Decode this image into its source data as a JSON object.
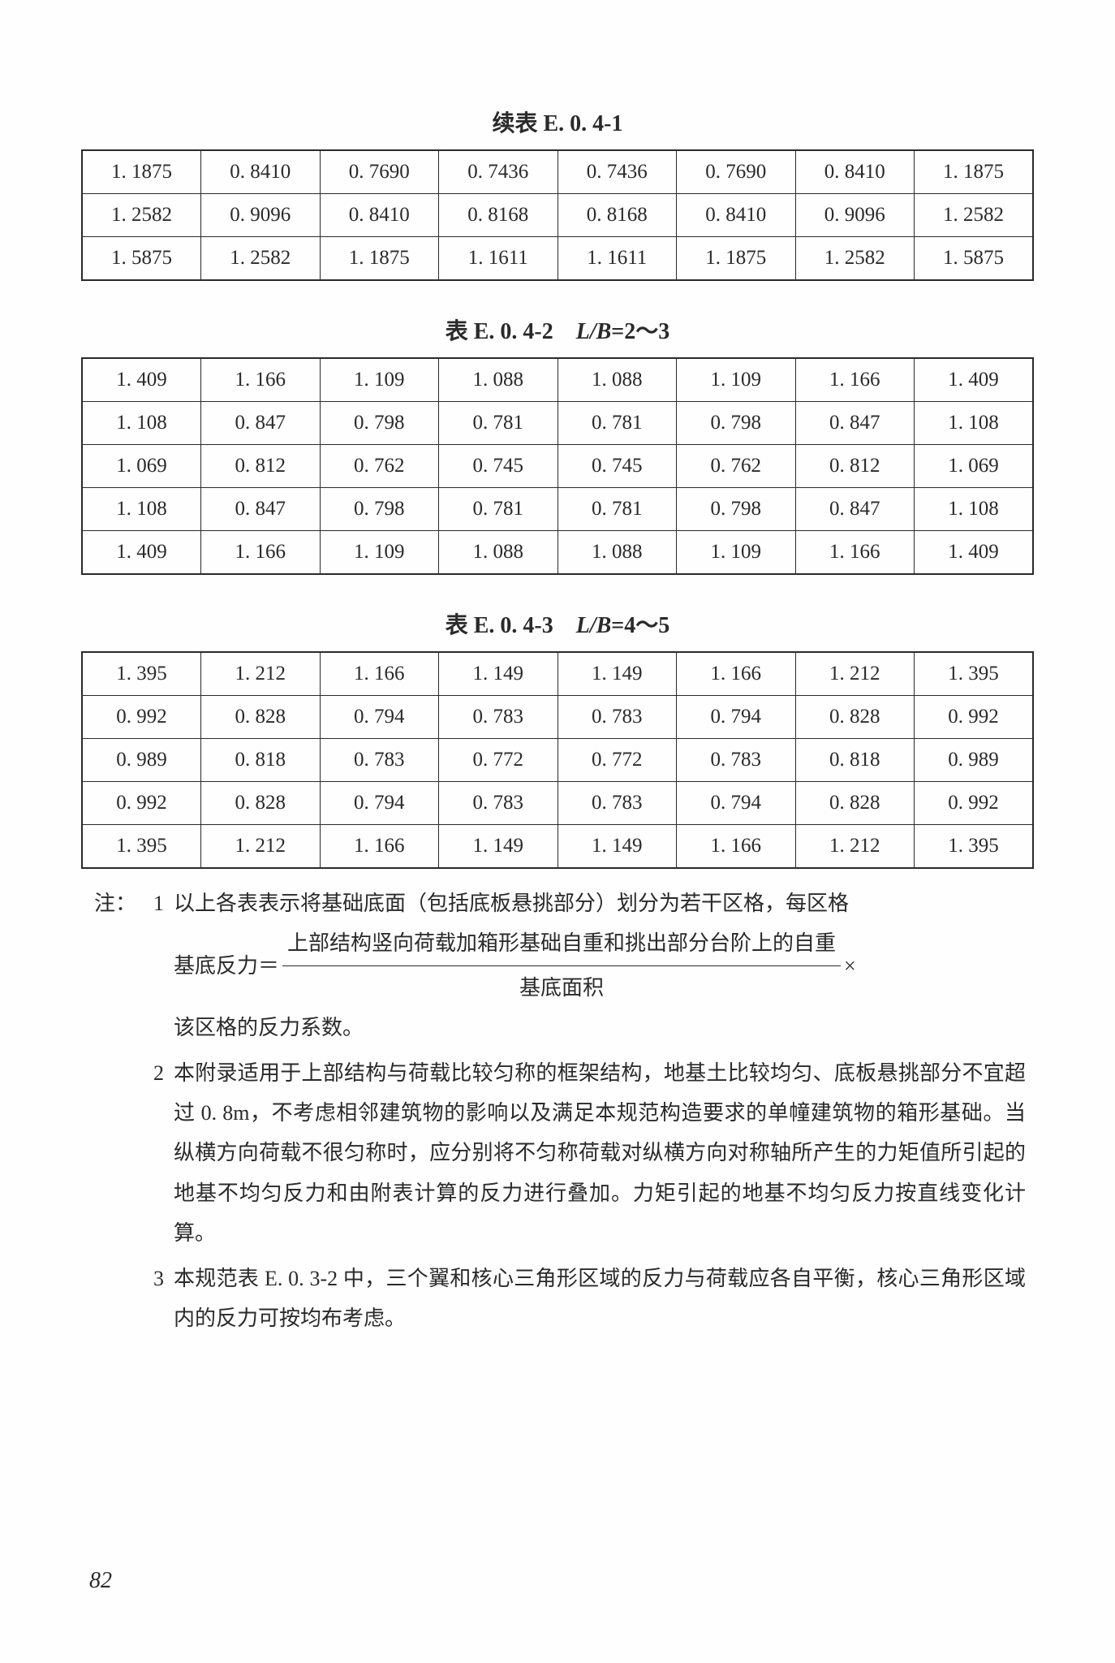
{
  "table1": {
    "title": "续表 E. 0. 4-1",
    "rows": [
      [
        "1. 1875",
        "0. 8410",
        "0. 7690",
        "0. 7436",
        "0. 7436",
        "0. 7690",
        "0. 8410",
        "1. 1875"
      ],
      [
        "1. 2582",
        "0. 9096",
        "0. 8410",
        "0. 8168",
        "0. 8168",
        "0. 8410",
        "0. 9096",
        "1. 2582"
      ],
      [
        "1. 5875",
        "1. 2582",
        "1. 1875",
        "1. 1611",
        "1. 1611",
        "1. 1875",
        "1. 2582",
        "1. 5875"
      ]
    ]
  },
  "table2": {
    "title_prefix": "表 E. 0. 4-2 ",
    "title_italic": "L/B",
    "title_suffix": "=2～3",
    "rows": [
      [
        "1. 409",
        "1. 166",
        "1. 109",
        "1. 088",
        "1. 088",
        "1. 109",
        "1. 166",
        "1. 409"
      ],
      [
        "1. 108",
        "0. 847",
        "0. 798",
        "0. 781",
        "0. 781",
        "0. 798",
        "0. 847",
        "1. 108"
      ],
      [
        "1. 069",
        "0. 812",
        "0. 762",
        "0. 745",
        "0. 745",
        "0. 762",
        "0. 812",
        "1. 069"
      ],
      [
        "1. 108",
        "0. 847",
        "0. 798",
        "0. 781",
        "0. 781",
        "0. 798",
        "0. 847",
        "1. 108"
      ],
      [
        "1. 409",
        "1. 166",
        "1. 109",
        "1. 088",
        "1. 088",
        "1. 109",
        "1. 166",
        "1. 409"
      ]
    ]
  },
  "table3": {
    "title_prefix": "表 E. 0. 4-3 ",
    "title_italic": "L/B",
    "title_suffix": "=4～5",
    "rows": [
      [
        "1. 395",
        "1. 212",
        "1. 166",
        "1. 149",
        "1. 149",
        "1. 166",
        "1. 212",
        "1. 395"
      ],
      [
        "0. 992",
        "0. 828",
        "0. 794",
        "0. 783",
        "0. 783",
        "0. 794",
        "0. 828",
        "0. 992"
      ],
      [
        "0. 989",
        "0. 818",
        "0. 783",
        "0. 772",
        "0. 772",
        "0. 783",
        "0. 818",
        "0. 989"
      ],
      [
        "0. 992",
        "0. 828",
        "0. 794",
        "0. 783",
        "0. 783",
        "0. 794",
        "0. 828",
        "0. 992"
      ],
      [
        "1. 395",
        "1. 212",
        "1. 166",
        "1. 149",
        "1. 149",
        "1. 166",
        "1. 212",
        "1. 395"
      ]
    ]
  },
  "notes": {
    "label": "注：",
    "items": [
      {
        "num": "1",
        "line1": "以上各表表示将基础底面（包括底板悬挑部分）划分为若干区格，每区格",
        "formula_left": "基底反力＝",
        "formula_top": "上部结构竖向荷载加箱形基础自重和挑出部分台阶上的自重",
        "formula_bot": "基底面积",
        "formula_right": "×",
        "line3": "该区格的反力系数。"
      },
      {
        "num": "2",
        "text": "本附录适用于上部结构与荷载比较匀称的框架结构，地基土比较均匀、底板悬挑部分不宜超过 0. 8m，不考虑相邻建筑物的影响以及满足本规范构造要求的单幢建筑物的箱形基础。当纵横方向荷载不很匀称时，应分别将不匀称荷载对纵横方向对称轴所产生的力矩值所引起的地基不均匀反力和由附表计算的反力进行叠加。力矩引起的地基不均匀反力按直线变化计算。"
      },
      {
        "num": "3",
        "text": "本规范表 E. 0. 3-2 中，三个翼和核心三角形区域的反力与荷载应各自平衡，核心三角形区域内的反力可按均布考虑。"
      }
    ]
  },
  "page": "82"
}
